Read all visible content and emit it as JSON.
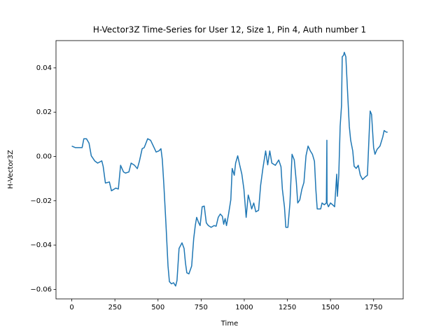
{
  "chart_data": {
    "type": "line",
    "title": "H-Vector3Z Time-Series for User 12, Size 1, Pin 4, Auth number 1",
    "x_label": "Time",
    "y_label": "H-Vector3Z",
    "color": "#1f77b4",
    "x": [
      0,
      20,
      60,
      70,
      85,
      100,
      113,
      133,
      150,
      174,
      182,
      195,
      218,
      230,
      255,
      270,
      283,
      300,
      311,
      331,
      344,
      364,
      380,
      392,
      408,
      420,
      440,
      457,
      477,
      489,
      505,
      517,
      525,
      534,
      546,
      558,
      566,
      578,
      590,
      602,
      610,
      622,
      639,
      651,
      659,
      667,
      679,
      695,
      707,
      716,
      724,
      736,
      744,
      756,
      768,
      780,
      792,
      808,
      825,
      837,
      849,
      861,
      873,
      881,
      889,
      897,
      909,
      922,
      930,
      942,
      950,
      962,
      974,
      986,
      998,
      1011,
      1023,
      1031,
      1043,
      1055,
      1067,
      1083,
      1095,
      1108,
      1124,
      1136,
      1148,
      1160,
      1180,
      1200,
      1213,
      1221,
      1233,
      1241,
      1253,
      1265,
      1277,
      1290,
      1302,
      1310,
      1322,
      1334,
      1346,
      1358,
      1370,
      1383,
      1395,
      1407,
      1415,
      1423,
      1443,
      1451,
      1464,
      1476,
      1479,
      1480,
      1488,
      1500,
      1512,
      1524,
      1536,
      1540,
      1548,
      1556,
      1564,
      1568,
      1576,
      1580,
      1589,
      1601,
      1609,
      1617,
      1629,
      1637,
      1649,
      1661,
      1673,
      1686,
      1702,
      1714,
      1726,
      1730,
      1738,
      1750,
      1758,
      1770,
      1787,
      1803,
      1811,
      1823,
      1831
    ],
    "values": [
      0.0047,
      0.004,
      0.004,
      0.008,
      0.008,
      0.006,
      0.0003,
      -0.002,
      -0.003,
      -0.002,
      -0.0045,
      -0.012,
      -0.0115,
      -0.0155,
      -0.0143,
      -0.0147,
      -0.004,
      -0.007,
      -0.0075,
      -0.007,
      -0.003,
      -0.004,
      -0.0055,
      -0.0022,
      0.0035,
      0.004,
      0.008,
      0.0073,
      0.004,
      0.002,
      0.0025,
      0.0035,
      -0.0015,
      -0.013,
      -0.0305,
      -0.0495,
      -0.0565,
      -0.0575,
      -0.057,
      -0.0585,
      -0.056,
      -0.0415,
      -0.039,
      -0.0415,
      -0.048,
      -0.0525,
      -0.053,
      -0.0495,
      -0.037,
      -0.0312,
      -0.0275,
      -0.03,
      -0.0312,
      -0.0227,
      -0.0224,
      -0.03,
      -0.0312,
      -0.032,
      -0.0312,
      -0.0315,
      -0.0275,
      -0.026,
      -0.027,
      -0.0306,
      -0.028,
      -0.0312,
      -0.026,
      -0.0196,
      -0.0054,
      -0.0085,
      -0.003,
      0.0003,
      -0.004,
      -0.008,
      -0.0148,
      -0.0275,
      -0.0174,
      -0.0196,
      -0.0237,
      -0.021,
      -0.025,
      -0.0243,
      -0.013,
      -0.0054,
      0.0025,
      -0.0038,
      0.0025,
      -0.003,
      -0.004,
      -0.0016,
      -0.0047,
      -0.0148,
      -0.0227,
      -0.032,
      -0.032,
      -0.021,
      0.001,
      -0.0016,
      -0.0117,
      -0.021,
      -0.0196,
      -0.0148,
      -0.0117,
      0.0003,
      0.0047,
      0.0025,
      0.001,
      -0.0022,
      -0.0148,
      -0.0237,
      -0.0237,
      -0.021,
      -0.0218,
      -0.021,
      0.0073,
      -0.021,
      -0.0227,
      -0.021,
      -0.0218,
      -0.0227,
      -0.008,
      -0.018,
      -0.0085,
      0.0136,
      0.023,
      0.045,
      0.0457,
      0.047,
      0.045,
      0.026,
      0.0136,
      0.0073,
      0.0025,
      -0.0044,
      -0.0054,
      -0.004,
      -0.0085,
      -0.0104,
      -0.0092,
      -0.0085,
      0.0136,
      0.0205,
      0.019,
      0.004,
      0.001,
      0.0032,
      0.0047,
      0.0088,
      0.0117,
      0.011,
      0.011
    ],
    "xlim": [
      -91.5,
      1921.5
    ],
    "ylim": [
      -0.0643,
      0.0523
    ],
    "xticks": [
      0,
      250,
      500,
      750,
      1000,
      1250,
      1500,
      1750
    ],
    "yticks": [
      {
        "value": -0.06,
        "label": "−0.06"
      },
      {
        "value": -0.04,
        "label": "−0.04"
      },
      {
        "value": -0.02,
        "label": "−0.02"
      },
      {
        "value": 0,
        "label": "0.00"
      },
      0.02,
      0.04
    ]
  }
}
